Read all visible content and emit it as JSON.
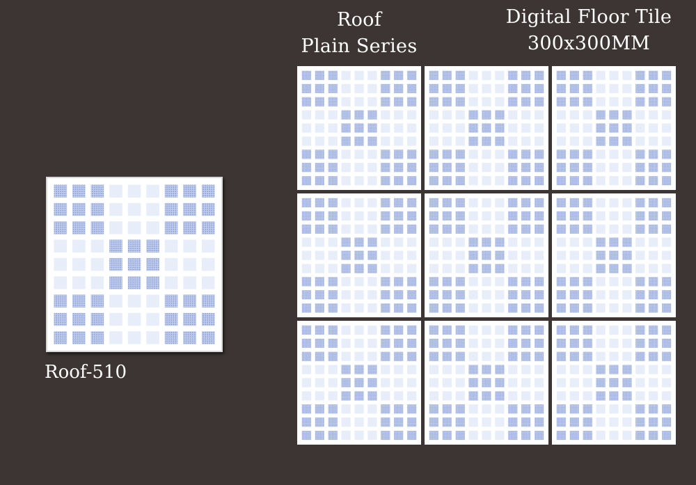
{
  "header": {
    "series_line1": "Roof",
    "series_line2": "Plain Series",
    "product_line1": "Digital Floor Tile",
    "product_line2": "300x300MM"
  },
  "featured_tile": {
    "label": "Roof-510"
  },
  "colors": {
    "background": "#3d3534",
    "tile_base": "#ffffff",
    "square_dark": "#8fa3d6",
    "square_medium": "#c3cfee",
    "square_light": "#e7edf9",
    "text": "#ffffff"
  },
  "tile_pattern": {
    "rows": [
      "DDDLLLDDD",
      "DDDLLLDDD",
      "DDDLLLDDD",
      "LLLDDDLLL",
      "LLLDDDLLL",
      "LLLDDDLLL",
      "DDDLLLDDD",
      "DDDLLLDDD",
      "DDDLLLDDD"
    ]
  },
  "preview_grid": {
    "rows": 3,
    "columns": 3
  }
}
